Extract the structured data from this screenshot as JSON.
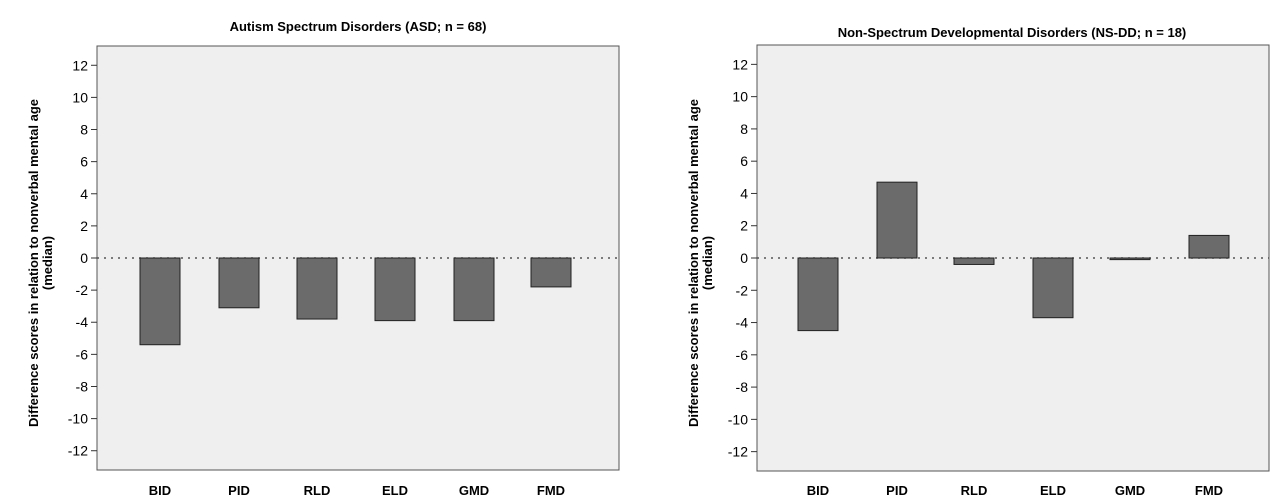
{
  "chart_data": [
    {
      "type": "bar",
      "title": "Autism Spectrum Disorders  (ASD;  n = 68)",
      "ylabel_line1": "Difference scores in relation to nonverbal mental age",
      "ylabel_line2": "(median)",
      "categories": [
        "BID",
        "PID",
        "RLD",
        "ELD",
        "GMD",
        "FMD"
      ],
      "values": [
        -5.4,
        -3.1,
        -3.8,
        -3.9,
        -3.9,
        -1.8
      ],
      "yticks": [
        "12",
        "10",
        "8",
        "6",
        "4",
        "2",
        "0",
        "-2",
        "-4",
        "-6",
        "-8",
        "-10",
        "-12"
      ],
      "ylim": [
        -13.2,
        13.2
      ],
      "reference_line": 0,
      "bar_color": "#6b6b6b",
      "plot_background": "#efefef"
    },
    {
      "type": "bar",
      "title": "Non-Spectrum Developmental Disorders (NS-DD;  n = 18)",
      "ylabel_line1": "Difference scores in relation to nonverbal mental age",
      "ylabel_line2": "(median)",
      "categories": [
        "BID",
        "PID",
        "RLD",
        "ELD",
        "GMD",
        "FMD"
      ],
      "values": [
        -4.5,
        4.7,
        -0.4,
        -3.7,
        -0.1,
        1.4
      ],
      "yticks": [
        "12",
        "10",
        "8",
        "6",
        "4",
        "2",
        "0",
        "-2",
        "-4",
        "-6",
        "-8",
        "-10",
        "-12"
      ],
      "ylim": [
        -13.2,
        13.2
      ],
      "reference_line": 0,
      "bar_color": "#6b6b6b",
      "plot_background": "#efefef"
    }
  ]
}
